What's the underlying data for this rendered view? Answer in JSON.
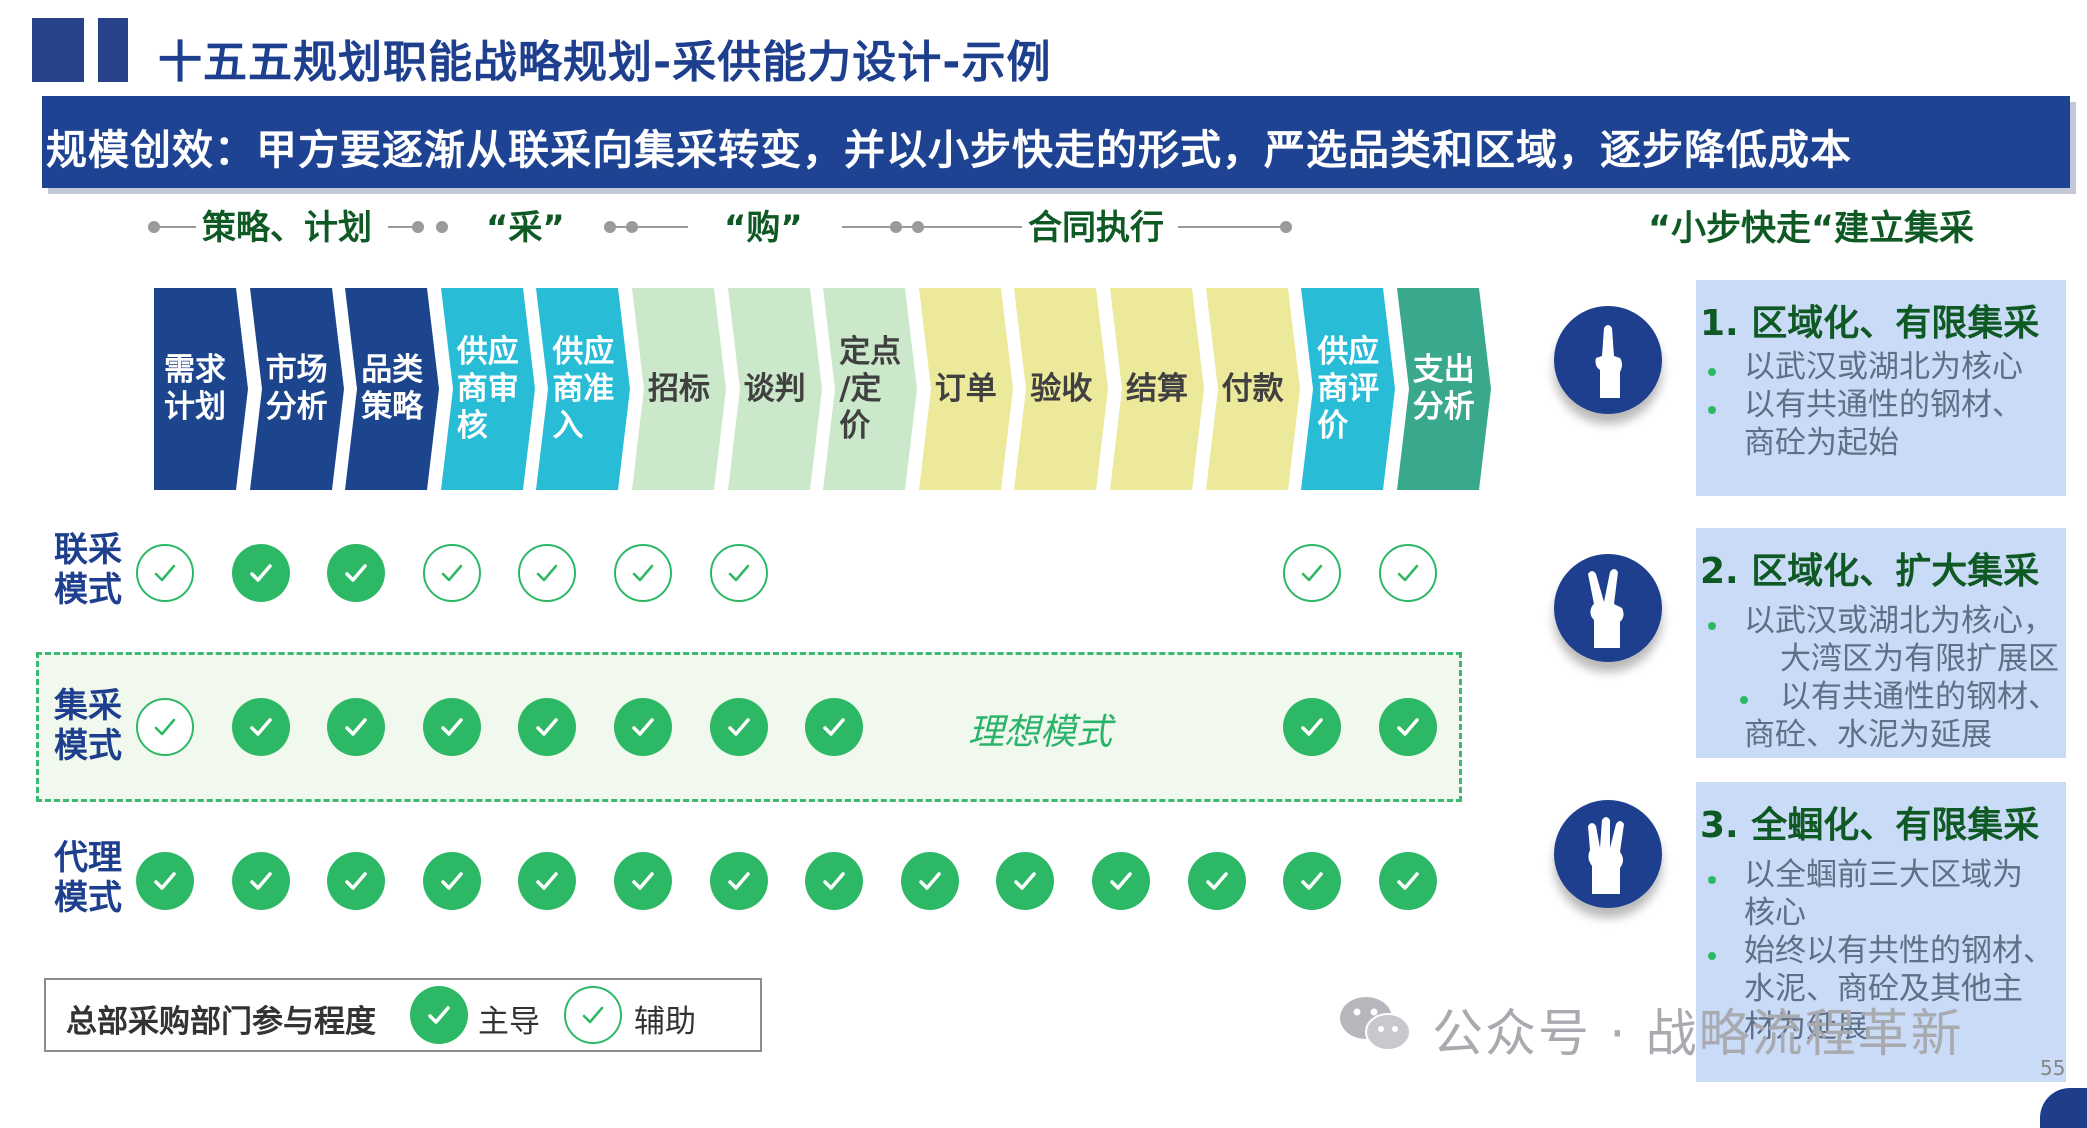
{
  "header": {
    "title": "十五五规划职能战略规划-采供能力设计-示例",
    "banner": "规模创效：甲方要逐渐从联采向集采转变，并以小步快走的形式，严选品类和区域，逐步降低成本"
  },
  "stages": [
    "策略、计划",
    "“采”",
    "“购”",
    "合同执行"
  ],
  "steps": [
    {
      "lines": [
        "需求",
        "计划"
      ],
      "color": "#1c458d",
      "text_color": "#ffffff"
    },
    {
      "lines": [
        "市场",
        "分析"
      ],
      "color": "#1c458d",
      "text_color": "#ffffff"
    },
    {
      "lines": [
        "品类",
        "策略"
      ],
      "color": "#1c458d",
      "text_color": "#ffffff"
    },
    {
      "lines": [
        "供应",
        "商审",
        "核"
      ],
      "color": "#29bcd6",
      "text_color": "#ffffff"
    },
    {
      "lines": [
        "供应",
        "商准",
        "入"
      ],
      "color": "#29bcd6",
      "text_color": "#ffffff"
    },
    {
      "lines": [
        "招标"
      ],
      "color": "#cbe8cb",
      "text_color": "#404040"
    },
    {
      "lines": [
        "谈判"
      ],
      "color": "#cbe8cb",
      "text_color": "#404040"
    },
    {
      "lines": [
        "定点",
        "/定",
        "价"
      ],
      "color": "#cbe8cb",
      "text_color": "#404040"
    },
    {
      "lines": [
        "订单"
      ],
      "color": "#ece99b",
      "text_color": "#404040"
    },
    {
      "lines": [
        "验收"
      ],
      "color": "#ece99b",
      "text_color": "#404040"
    },
    {
      "lines": [
        "结算"
      ],
      "color": "#ece99b",
      "text_color": "#404040"
    },
    {
      "lines": [
        "付款"
      ],
      "color": "#ece99b",
      "text_color": "#404040"
    },
    {
      "lines": [
        "供应",
        "商评",
        "价"
      ],
      "color": "#29bcd6",
      "text_color": "#ffffff"
    },
    {
      "lines": [
        "支出",
        "分析"
      ],
      "color": "#3aa88c",
      "text_color": "#ffffff"
    }
  ],
  "modes": [
    {
      "lines": [
        "联采",
        "模式"
      ],
      "checks": [
        "aux",
        "main",
        "main",
        "aux",
        "aux",
        "aux",
        "aux",
        "",
        "",
        "",
        "",
        "",
        "aux",
        "aux"
      ]
    },
    {
      "lines": [
        "集采",
        "模式"
      ],
      "checks": [
        "aux",
        "main",
        "main",
        "main",
        "main",
        "main",
        "main",
        "main",
        "",
        "",
        "",
        "",
        "main",
        "main"
      ]
    },
    {
      "lines": [
        "代理",
        "模式"
      ],
      "checks": [
        "main",
        "main",
        "main",
        "main",
        "main",
        "main",
        "main",
        "main",
        "main",
        "main",
        "main",
        "main",
        "main",
        "main"
      ]
    }
  ],
  "ideal_label": "理想模式",
  "legend": {
    "title": "总部采购部门参与程度",
    "main_label": "主导",
    "aux_label": "辅助"
  },
  "right": {
    "header": "“小步快走“建立集采",
    "cards": [
      {
        "title": "1. 区域化、有限集采",
        "hand": "one-finger-hand-icon",
        "items": [
          "以武汉或湖北为核心",
          "以有共通性的钢材、",
          "商砼为起始"
        ]
      },
      {
        "title": "2. 区域化、扩大集采",
        "hand": "two-finger-hand-icon",
        "items": [
          "以武汉或湖北为核心，",
          "大湾区为有限扩展区",
          "以有共通性的钢材、",
          "商砼、水泥为延展"
        ]
      },
      {
        "title": "3. 全蝈化、有限集采",
        "hand": "three-finger-hand-icon",
        "items": [
          "以全蝈前三大区域为",
          "核心",
          "始终以有共性的钢材、",
          "水泥、商砼及其他主",
          "材为延展"
        ]
      }
    ]
  },
  "watermark": "公众号 · 战略流程革新",
  "page_number": "55",
  "colors": {
    "navy": "#1e3f8e",
    "green": "#2db866",
    "dark_green": "#0f5a24"
  }
}
